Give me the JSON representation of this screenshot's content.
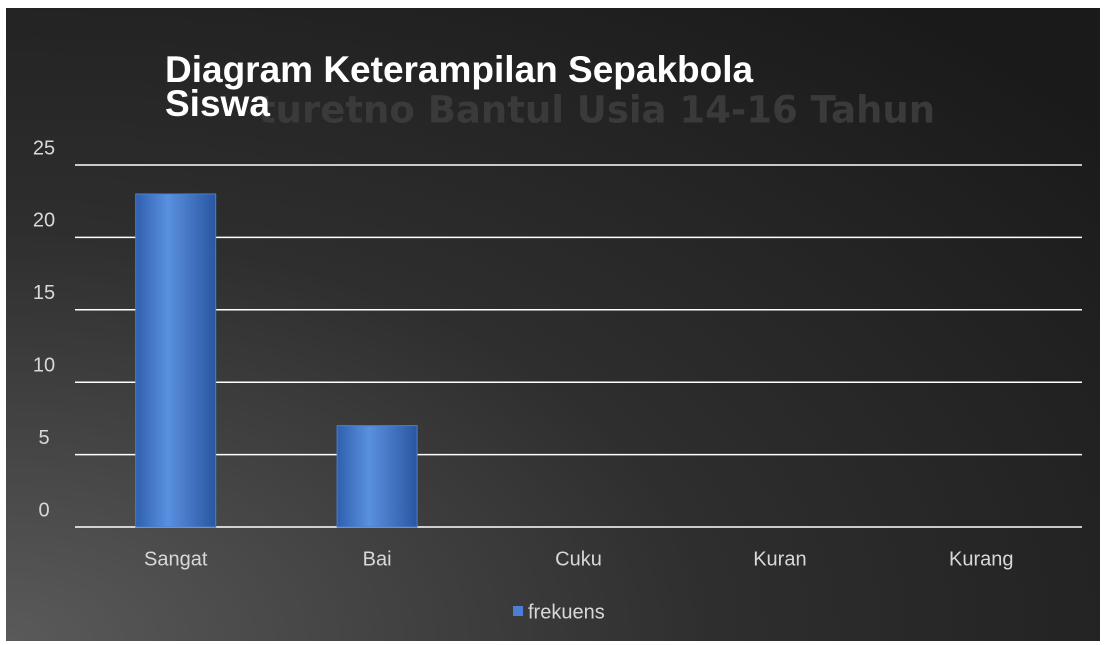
{
  "chart_data": {
    "type": "bar",
    "title": [
      "Diagram  Keterampilan Sepakbola",
      "Siswa"
    ],
    "subtitle": "turetno Bantul Usia 14-16 Tahun",
    "categories": [
      "Sangat",
      "Bai",
      "Cuku",
      "Kuran",
      "Kurang"
    ],
    "series": [
      {
        "name": "frekuens",
        "color": "#4a7fd4",
        "values": [
          23,
          7,
          0,
          0,
          0
        ]
      }
    ],
    "ylim": [
      0,
      25
    ],
    "yticks": [
      0,
      5,
      10,
      15,
      20,
      25
    ],
    "grid": true,
    "legend": "bottom"
  }
}
